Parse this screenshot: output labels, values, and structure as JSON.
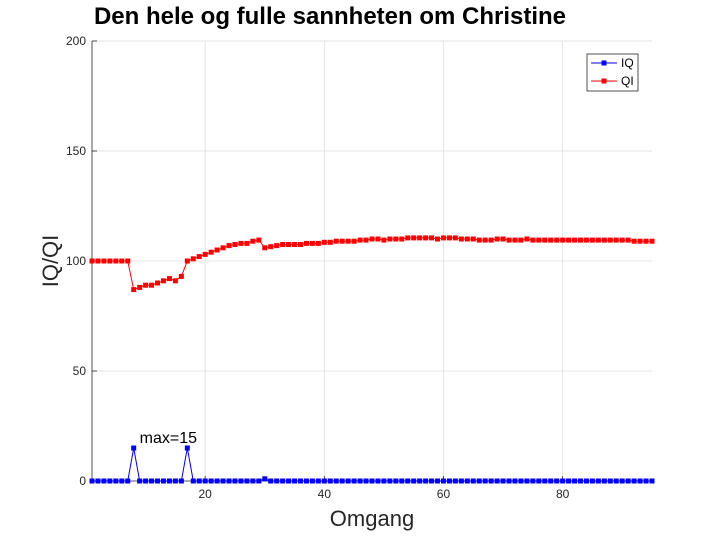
{
  "chart_data": {
    "type": "line",
    "title": "Den hele og fulle sannheten om Christine",
    "xlabel": "Omgang",
    "ylabel": "IQ/QI",
    "xlim": [
      1,
      95
    ],
    "ylim": [
      0,
      200
    ],
    "xticks": [
      20,
      40,
      60,
      80
    ],
    "yticks": [
      0,
      50,
      100,
      150,
      200
    ],
    "grid": true,
    "legend_position": "top-right",
    "annotation": {
      "text": "max=15",
      "x": 9,
      "y": 20
    },
    "series": [
      {
        "name": "IQ",
        "color": "#0000ff",
        "marker": "square",
        "x": [
          1,
          2,
          3,
          4,
          5,
          6,
          7,
          8,
          9,
          10,
          11,
          12,
          13,
          14,
          15,
          16,
          17,
          18,
          19,
          20,
          21,
          22,
          23,
          24,
          25,
          26,
          27,
          28,
          29,
          30,
          31,
          32,
          33,
          34,
          35,
          36,
          37,
          38,
          39,
          40,
          41,
          42,
          43,
          44,
          45,
          46,
          47,
          48,
          49,
          50,
          51,
          52,
          53,
          54,
          55,
          56,
          57,
          58,
          59,
          60,
          61,
          62,
          63,
          64,
          65,
          66,
          67,
          68,
          69,
          70,
          71,
          72,
          73,
          74,
          75,
          76,
          77,
          78,
          79,
          80,
          81,
          82,
          83,
          84,
          85,
          86,
          87,
          88,
          89,
          90,
          91,
          92,
          93,
          94,
          95
        ],
        "values": [
          0,
          0,
          0,
          0,
          0,
          0,
          0,
          15,
          0,
          0,
          0,
          0,
          0,
          0,
          0,
          0,
          15,
          0,
          0,
          0,
          0,
          0,
          0,
          0,
          0,
          0,
          0,
          0,
          0,
          1,
          0,
          0,
          0,
          0,
          0,
          0,
          0,
          0,
          0,
          0,
          0,
          0,
          0,
          0,
          0,
          0,
          0,
          0,
          0,
          0,
          0,
          0,
          0,
          0,
          0,
          0,
          0,
          0,
          0,
          0,
          0,
          0,
          0,
          0,
          0,
          0,
          0,
          0,
          0,
          0,
          0,
          0,
          0,
          0,
          0,
          0,
          0,
          0,
          0,
          0,
          0,
          0,
          0,
          0,
          0,
          0,
          0,
          0,
          0,
          0,
          0,
          0,
          0,
          0,
          0
        ]
      },
      {
        "name": "QI",
        "color": "#ff0000",
        "marker": "square",
        "x": [
          1,
          2,
          3,
          4,
          5,
          6,
          7,
          8,
          9,
          10,
          11,
          12,
          13,
          14,
          15,
          16,
          17,
          18,
          19,
          20,
          21,
          22,
          23,
          24,
          25,
          26,
          27,
          28,
          29,
          30,
          31,
          32,
          33,
          34,
          35,
          36,
          37,
          38,
          39,
          40,
          41,
          42,
          43,
          44,
          45,
          46,
          47,
          48,
          49,
          50,
          51,
          52,
          53,
          54,
          55,
          56,
          57,
          58,
          59,
          60,
          61,
          62,
          63,
          64,
          65,
          66,
          67,
          68,
          69,
          70,
          71,
          72,
          73,
          74,
          75,
          76,
          77,
          78,
          79,
          80,
          81,
          82,
          83,
          84,
          85,
          86,
          87,
          88,
          89,
          90,
          91,
          92,
          93,
          94,
          95
        ],
        "values": [
          100,
          100,
          100,
          100,
          100,
          100,
          100,
          87,
          88,
          89,
          89,
          90,
          91,
          92,
          91,
          93,
          100,
          101,
          102,
          103,
          104,
          105,
          106,
          107,
          107.5,
          108,
          108,
          109,
          109.5,
          106,
          106.5,
          107,
          107.5,
          107.5,
          107.5,
          107.5,
          108,
          108,
          108,
          108.5,
          108.5,
          109,
          109,
          109,
          109,
          109.5,
          109.5,
          110,
          110,
          109.5,
          110,
          110,
          110,
          110.5,
          110.5,
          110.5,
          110.5,
          110.5,
          110,
          110.5,
          110.5,
          110.5,
          110,
          110,
          110,
          109.5,
          109.5,
          109.5,
          110,
          110,
          109.5,
          109.5,
          109.5,
          110,
          109.5,
          109.5,
          109.5,
          109.5,
          109.5,
          109.5,
          109.5,
          109.5,
          109.5,
          109.5,
          109.5,
          109.5,
          109.5,
          109.5,
          109.5,
          109.5,
          109.5,
          109,
          109,
          109,
          109
        ]
      }
    ]
  }
}
